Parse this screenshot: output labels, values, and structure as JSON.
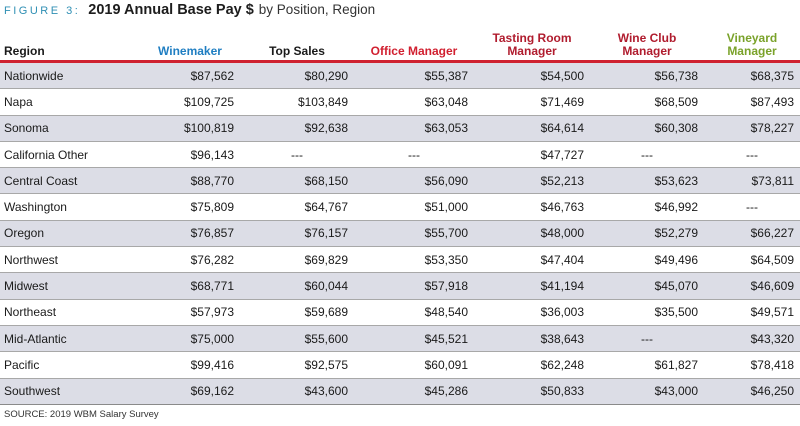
{
  "figure": {
    "label": "FIGURE 3:",
    "title": "2019 Annual Base Pay $",
    "subtitle": "by Position, Region"
  },
  "chart_data": {
    "type": "table",
    "title": "2019 Annual Base Pay $ by Position, Region",
    "row_header": "Region",
    "columns": [
      {
        "name": "Winemaker",
        "color": "#1f7ec2"
      },
      {
        "name": "Top Sales",
        "color": "#1a1a1a"
      },
      {
        "name": "Office Manager",
        "color": "#d11f2f"
      },
      {
        "name": "Tasting Room Manager",
        "color": "#b01c2e"
      },
      {
        "name": "Wine Club Manager",
        "color": "#b01c2e"
      },
      {
        "name": "Vineyard Manager",
        "color": "#7aa22a"
      }
    ],
    "rows": [
      {
        "region": "Nationwide",
        "values": [
          "$87,562",
          "$80,290",
          "$55,387",
          "$54,500",
          "$56,738",
          "$68,375"
        ]
      },
      {
        "region": "Napa",
        "values": [
          "$109,725",
          "$103,849",
          "$63,048",
          "$71,469",
          "$68,509",
          "$87,493"
        ]
      },
      {
        "region": "Sonoma",
        "values": [
          "$100,819",
          "$92,638",
          "$63,053",
          "$64,614",
          "$60,308",
          "$78,227"
        ]
      },
      {
        "region": "California Other",
        "values": [
          "$96,143",
          "---",
          "---",
          "$47,727",
          "---",
          "---"
        ]
      },
      {
        "region": "Central Coast",
        "values": [
          "$88,770",
          "$68,150",
          "$56,090",
          "$52,213",
          "$53,623",
          "$73,811"
        ]
      },
      {
        "region": "Washington",
        "values": [
          "$75,809",
          "$64,767",
          "$51,000",
          "$46,763",
          "$46,992",
          "---"
        ]
      },
      {
        "region": "Oregon",
        "values": [
          "$76,857",
          "$76,157",
          "$55,700",
          "$48,000",
          "$52,279",
          "$66,227"
        ]
      },
      {
        "region": "Northwest",
        "values": [
          "$76,282",
          "$69,829",
          "$53,350",
          "$47,404",
          "$49,496",
          "$64,509"
        ]
      },
      {
        "region": "Midwest",
        "values": [
          "$68,771",
          "$60,044",
          "$57,918",
          "$41,194",
          "$45,070",
          "$46,609"
        ]
      },
      {
        "region": "Northeast",
        "values": [
          "$57,973",
          "$59,689",
          "$48,540",
          "$36,003",
          "$35,500",
          "$49,571"
        ]
      },
      {
        "region": "Mid-Atlantic",
        "values": [
          "$75,000",
          "$55,600",
          "$45,521",
          "$38,643",
          "---",
          "$43,320"
        ]
      },
      {
        "region": "Pacific",
        "values": [
          "$99,416",
          "$92,575",
          "$60,091",
          "$62,248",
          "$61,827",
          "$78,418"
        ]
      },
      {
        "region": "Southwest",
        "values": [
          "$69,162",
          "$43,600",
          "$45,286",
          "$50,833",
          "$43,000",
          "$46,250"
        ]
      }
    ]
  },
  "source": "SOURCE: 2019 WBM Salary Survey",
  "colors": {
    "header_rule": "#cf2130",
    "row_shade": "#dcdde6",
    "figure_label": "#2f8fb4"
  }
}
